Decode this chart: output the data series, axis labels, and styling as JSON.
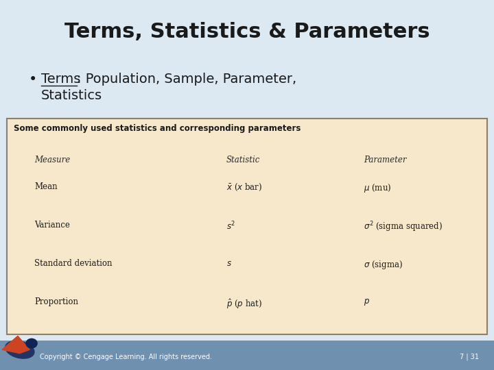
{
  "title": "Terms, Statistics & Parameters",
  "bg_color": "#dce8f2",
  "footer_color": "#7090b0",
  "footer_text": "Copyright © Cengage Learning. All rights reserved.",
  "footer_page": "7 | 31",
  "bullet_underline": "Terms",
  "bullet_colon_rest": ": Population, Sample, Parameter,",
  "bullet_line2": "Statistics",
  "table_bg": "#f7e8cc",
  "table_border": "#888070",
  "table_title": "Some commonly used statistics and corresponding parameters",
  "col_headers": [
    "Measure",
    "Statistic",
    "Parameter"
  ],
  "rows": [
    [
      "Mean",
      "$\\bar{x}$ ($x$ bar)",
      "$\\mu$ (mu)"
    ],
    [
      "Variance",
      "$s^2$",
      "$\\sigma^2$ (sigma squared)"
    ],
    [
      "Standard deviation",
      "$s$",
      "$\\sigma$ (sigma)"
    ],
    [
      "Proportion",
      "$\\hat{p}$ ($p$ hat)",
      "$p$"
    ]
  ],
  "title_fontsize": 22,
  "bullet_fontsize": 14,
  "table_title_fontsize": 8.5,
  "table_header_fontsize": 8.5,
  "table_row_fontsize": 8.5
}
